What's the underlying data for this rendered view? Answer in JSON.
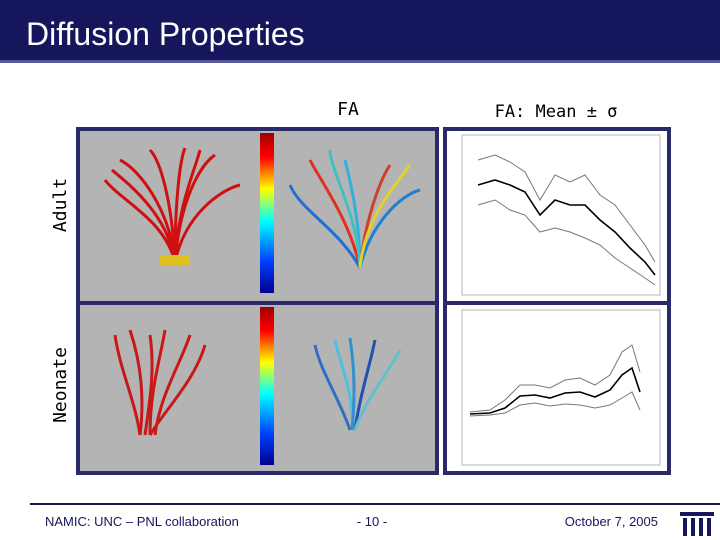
{
  "header": {
    "title": "Diffusion Properties"
  },
  "columns": [
    "FA",
    "FA: Mean ± σ"
  ],
  "rows": [
    "Adult",
    "Neonate"
  ],
  "footer": {
    "left": "NAMIC: UNC – PNL collaboration",
    "center": "- 10 -",
    "right": "October 7, 2005"
  }
}
